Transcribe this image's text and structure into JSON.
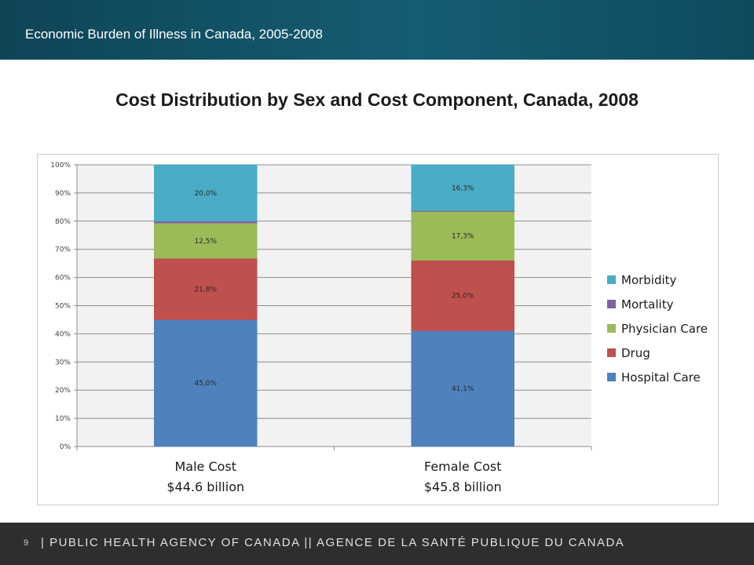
{
  "header": {
    "title": "Economic Burden of Illness in Canada, 2005-2008"
  },
  "slide": {
    "title": "Cost Distribution by Sex and Cost Component, Canada, 2008"
  },
  "footer": {
    "page": "9",
    "agency": "| PUBLIC HEALTH AGENCY OF CANADA  ||  AGENCE DE LA SANTÉ PUBLIQUE DU CANADA"
  },
  "chart_data": {
    "type": "bar",
    "stacked": true,
    "categories": [
      [
        "Male Cost",
        "$44.6 billion"
      ],
      [
        "Female Cost",
        "$45.8 billion"
      ]
    ],
    "ylim": [
      0,
      100
    ],
    "yticks": [
      "0%",
      "10%",
      "20%",
      "30%",
      "40%",
      "50%",
      "60%",
      "70%",
      "80%",
      "90%",
      "100%"
    ],
    "grid": true,
    "legend_position": "right",
    "series": [
      {
        "name": "Hospital Care",
        "color": "#4f81bd",
        "values": [
          45.0,
          41.1
        ],
        "labels": [
          "45,0%",
          "41,1%"
        ]
      },
      {
        "name": "Drug",
        "color": "#c0504d",
        "values": [
          21.8,
          25.0
        ],
        "labels": [
          "21,8%",
          "25,0%"
        ]
      },
      {
        "name": "Physician Care",
        "color": "#9bbb59",
        "values": [
          12.5,
          17.3
        ],
        "labels": [
          "12,5%",
          "17,3%"
        ]
      },
      {
        "name": "Mortality",
        "color": "#8064a2",
        "values": [
          0.7,
          0.3
        ],
        "labels": [
          "",
          ""
        ]
      },
      {
        "name": "Morbidity",
        "color": "#4bacc6",
        "values": [
          20.0,
          16.3
        ],
        "labels": [
          "20,0%",
          "16,3%"
        ]
      }
    ]
  }
}
